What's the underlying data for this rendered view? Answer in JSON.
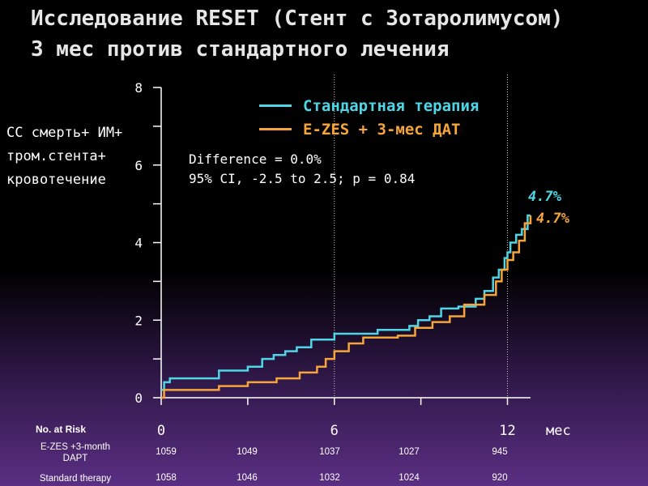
{
  "title": {
    "line1": "Исследование RESET (Стент с Зотаролимусом)",
    "line2": "3 мес против стандартного лечения"
  },
  "chart_data": {
    "type": "line",
    "ylabel_lines": [
      "СС смерть+ ИМ+",
      "тром.стента+",
      "кровотечение"
    ],
    "xunit": "мес",
    "xlim": [
      0,
      12.8
    ],
    "ylim": [
      0,
      8
    ],
    "xticks": [
      0,
      6,
      12
    ],
    "xticks_minor": [
      3,
      9
    ],
    "yticks": [
      0,
      2,
      4,
      6,
      8
    ],
    "yticks_minor": [
      1,
      3,
      5,
      7
    ],
    "vgrid": [
      6,
      12
    ],
    "legend": [
      "Стандартная терапия",
      "E-ZES + 3-мес ДАТ"
    ],
    "annotation": [
      "Difference = 0.0%",
      "95% CI, -2.5 to 2.5; p = 0.84"
    ],
    "series": [
      {
        "name": "Стандартная терапия",
        "color": "#4fd6e6",
        "end_label": "4.7%",
        "points": [
          [
            0,
            0.2
          ],
          [
            0.1,
            0.4
          ],
          [
            0.3,
            0.5
          ],
          [
            2.0,
            0.7
          ],
          [
            3.0,
            0.8
          ],
          [
            3.5,
            1.0
          ],
          [
            3.9,
            1.1
          ],
          [
            4.3,
            1.2
          ],
          [
            4.7,
            1.3
          ],
          [
            5.2,
            1.5
          ],
          [
            6.0,
            1.65
          ],
          [
            7.5,
            1.75
          ],
          [
            8.3,
            1.75
          ],
          [
            8.6,
            1.85
          ],
          [
            8.9,
            2.0
          ],
          [
            9.3,
            2.1
          ],
          [
            9.7,
            2.3
          ],
          [
            10.3,
            2.35
          ],
          [
            10.9,
            2.55
          ],
          [
            11.2,
            2.75
          ],
          [
            11.5,
            3.1
          ],
          [
            11.7,
            3.3
          ],
          [
            11.9,
            3.6
          ],
          [
            12.0,
            3.75
          ],
          [
            12.1,
            4.0
          ],
          [
            12.3,
            4.2
          ],
          [
            12.5,
            4.35
          ],
          [
            12.7,
            4.7
          ],
          [
            12.8,
            4.7
          ]
        ]
      },
      {
        "name": "E-ZES + 3-мес ДАТ",
        "color": "#f5a53a",
        "end_label": "4.7%",
        "points": [
          [
            0,
            0.0
          ],
          [
            0.1,
            0.2
          ],
          [
            2.0,
            0.3
          ],
          [
            3.0,
            0.4
          ],
          [
            4.0,
            0.5
          ],
          [
            4.8,
            0.65
          ],
          [
            5.4,
            0.8
          ],
          [
            5.7,
            1.0
          ],
          [
            6.0,
            1.2
          ],
          [
            6.5,
            1.4
          ],
          [
            7.0,
            1.55
          ],
          [
            8.2,
            1.6
          ],
          [
            8.8,
            1.8
          ],
          [
            9.4,
            1.95
          ],
          [
            10.0,
            2.1
          ],
          [
            10.5,
            2.4
          ],
          [
            11.2,
            2.65
          ],
          [
            11.6,
            3.0
          ],
          [
            11.8,
            3.3
          ],
          [
            12.0,
            3.55
          ],
          [
            12.2,
            3.75
          ],
          [
            12.4,
            4.05
          ],
          [
            12.6,
            4.5
          ],
          [
            12.8,
            4.7
          ]
        ]
      }
    ],
    "risk_table": {
      "header": "No. at Risk",
      "rows": [
        {
          "label_lines": [
            "E-ZES +3-month",
            "DAPT"
          ],
          "values": [
            "1059",
            "1049",
            "1037",
            "1027",
            "945"
          ]
        },
        {
          "label_lines": [
            "Standard therapy"
          ],
          "values": [
            "1058",
            "1046",
            "1032",
            "1024",
            "920"
          ]
        }
      ]
    }
  }
}
